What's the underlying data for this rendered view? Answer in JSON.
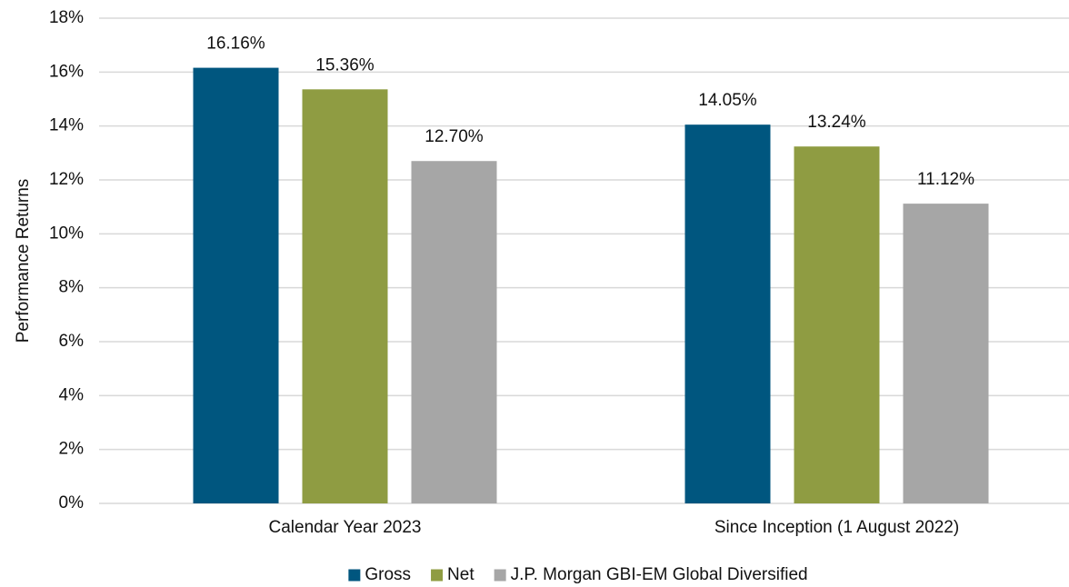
{
  "chart_data": {
    "type": "bar",
    "y_label": "Performance Returns",
    "categories": [
      "Calendar Year 2023",
      "Since Inception (1 August 2022)"
    ],
    "series": [
      {
        "name": "Gross",
        "color": "#00567f",
        "values": [
          16.16,
          14.05
        ],
        "value_labels": [
          "16.16%",
          "14.05%"
        ]
      },
      {
        "name": "Net",
        "color": "#8f9c42",
        "values": [
          15.36,
          13.24
        ],
        "value_labels": [
          "15.36%",
          "13.24%"
        ]
      },
      {
        "name": "J.P. Morgan GBI-EM Global Diversified",
        "color": "#a6a6a6",
        "values": [
          12.7,
          11.12
        ],
        "value_labels": [
          "12.70%",
          "11.12%"
        ]
      }
    ],
    "ylim": [
      0,
      18
    ],
    "yticks": [
      {
        "value": 0,
        "label": "0%"
      },
      {
        "value": 2,
        "label": "2%"
      },
      {
        "value": 4,
        "label": "4%"
      },
      {
        "value": 6,
        "label": "6%"
      },
      {
        "value": 8,
        "label": "8%"
      },
      {
        "value": 10,
        "label": "10%"
      },
      {
        "value": 12,
        "label": "12%"
      },
      {
        "value": 14,
        "label": "14%"
      },
      {
        "value": 16,
        "label": "16%"
      },
      {
        "value": 18,
        "label": "18%"
      }
    ],
    "grid": true,
    "legend": "bottom"
  }
}
